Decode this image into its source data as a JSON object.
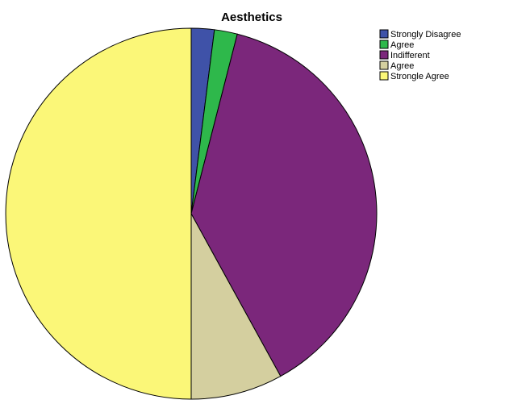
{
  "chart_data": {
    "type": "pie",
    "title": "Aesthetics",
    "categories": [
      "Strongly Disagree",
      "Agree",
      "Indifferent",
      "Agree",
      "Strongle Agree"
    ],
    "values": [
      2,
      2,
      38,
      8,
      50
    ],
    "colors": [
      "#3f52a8",
      "#2eb84b",
      "#7b277b",
      "#d4cf9f",
      "#fbf778"
    ],
    "legend": "top-right"
  }
}
